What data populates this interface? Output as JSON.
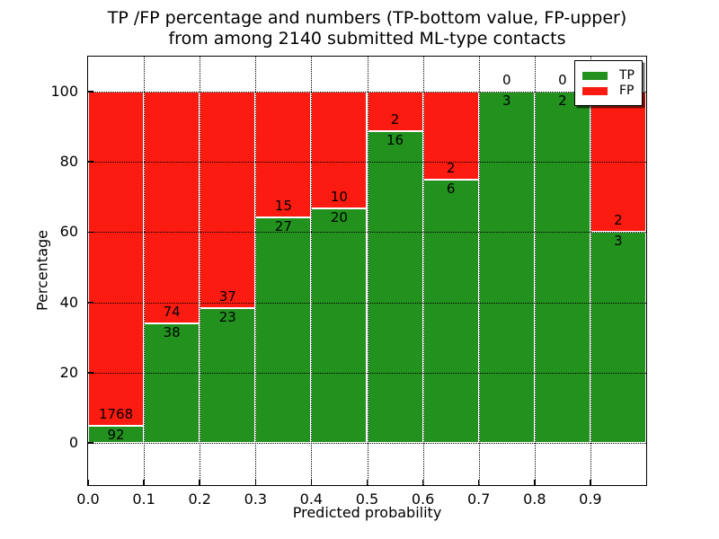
{
  "title": {
    "line1": "TP /FP percentage and numbers (TP-bottom value, FP-upper)",
    "line2": "from among 2140 submitted ML-type contacts"
  },
  "axes": {
    "ylabel": "Percentage",
    "xlabel": "Predicted probability",
    "ytick_labels": [
      "0",
      "20",
      "40",
      "60",
      "80",
      "100"
    ],
    "ytick_values": [
      0,
      20,
      40,
      60,
      80,
      100
    ],
    "xtick_labels": [
      "0.0",
      "0.1",
      "0.2",
      "0.3",
      "0.4",
      "0.5",
      "0.6",
      "0.7",
      "0.8",
      "0.9"
    ],
    "ylim": [
      -12,
      110
    ],
    "xlim": [
      0.0,
      1.0
    ]
  },
  "legend": {
    "position": "upper right"
  },
  "chart_data": {
    "type": "bar",
    "stacked": true,
    "title": "TP /FP percentage and numbers (TP-bottom value, FP-upper) from among 2140 submitted ML-type contacts",
    "xlabel": "Predicted probability",
    "ylabel": "Percentage",
    "total_contacts": 2140,
    "bin_width": 0.1,
    "categories": [
      "0.0-0.1",
      "0.1-0.2",
      "0.2-0.3",
      "0.3-0.4",
      "0.4-0.5",
      "0.5-0.6",
      "0.6-0.7",
      "0.7-0.8",
      "0.8-0.9",
      "0.9-1.0"
    ],
    "series": [
      {
        "name": "TP",
        "color": "#22911e",
        "counts": [
          92,
          38,
          23,
          27,
          20,
          16,
          6,
          3,
          2,
          3
        ],
        "percent": [
          4.9,
          33.9,
          38.3,
          64.3,
          66.7,
          88.9,
          75.0,
          100.0,
          100.0,
          60.0
        ]
      },
      {
        "name": "FP",
        "color": "#fb1b10",
        "counts": [
          1768,
          74,
          37,
          15,
          10,
          2,
          2,
          0,
          0,
          2
        ],
        "percent": [
          95.1,
          66.1,
          61.7,
          35.7,
          33.3,
          11.1,
          25.0,
          0.0,
          0.0,
          40.0
        ]
      }
    ],
    "ylim": [
      -12,
      110
    ],
    "grid": true,
    "legend_position": "upper right"
  }
}
